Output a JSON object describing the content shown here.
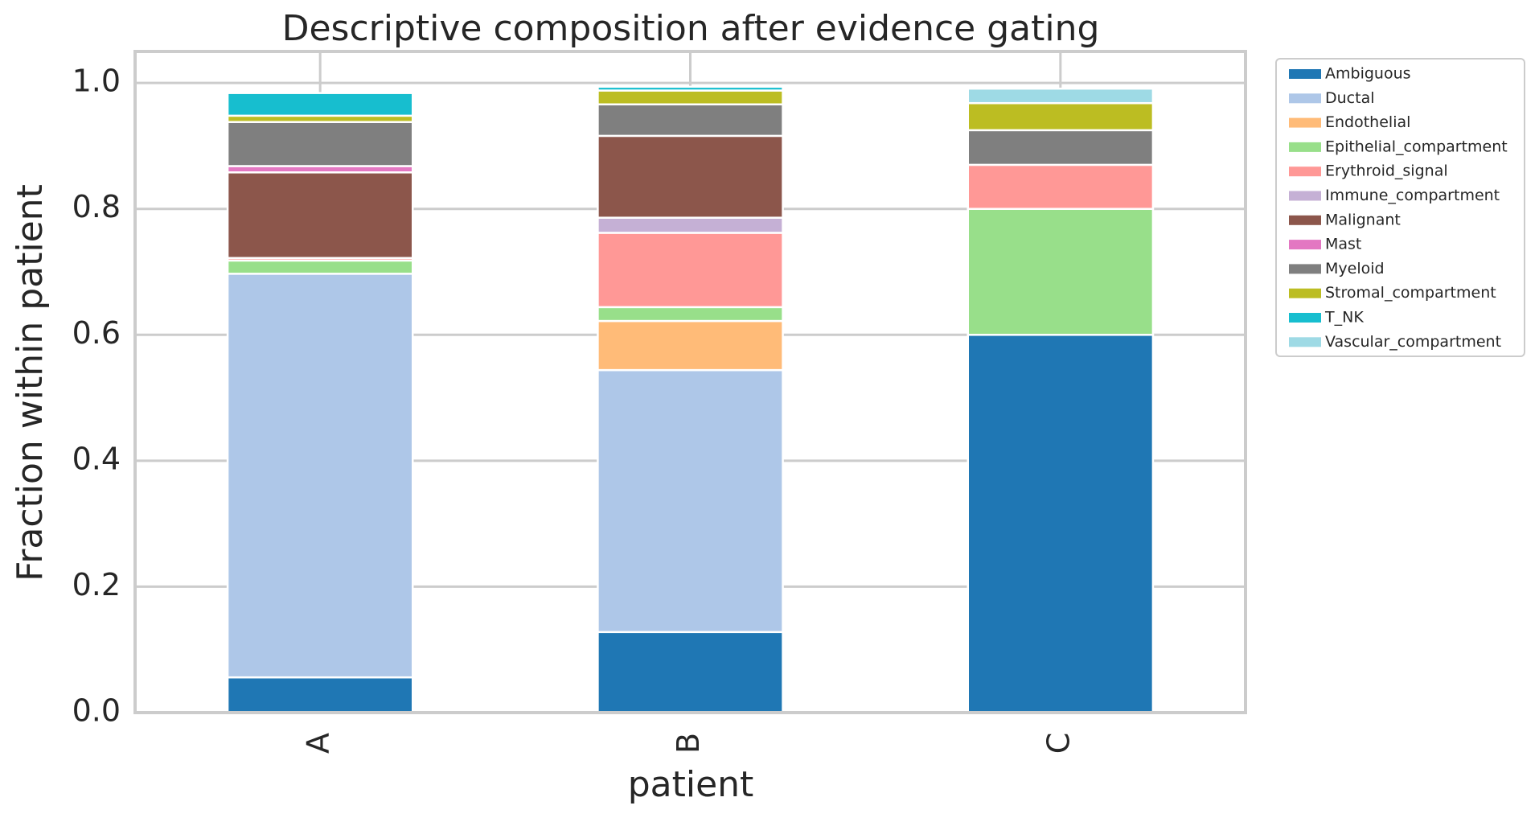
{
  "chart_data": {
    "type": "bar",
    "stacked": true,
    "title": "Descriptive composition after evidence gating",
    "xlabel": "patient",
    "ylabel": "Fraction within patient",
    "ylim": [
      0,
      1.05
    ],
    "yticks": [
      "0.0",
      "0.2",
      "0.4",
      "0.6",
      "0.8",
      "1.0"
    ],
    "ytick_values": [
      0,
      0.2,
      0.4,
      0.6,
      0.8,
      1.0
    ],
    "categories": [
      "A",
      "B",
      "C"
    ],
    "grid": true,
    "legend_position": "outside upper right",
    "series": [
      {
        "name": "Ambiguous",
        "color": "#1f77b4",
        "values": [
          0.056,
          0.128,
          0.6
        ]
      },
      {
        "name": "Ductal",
        "color": "#aec7e8",
        "values": [
          0.641,
          0.416,
          0.0
        ]
      },
      {
        "name": "Endothelial",
        "color": "#ffbb78",
        "values": [
          0.0,
          0.078,
          0.0
        ]
      },
      {
        "name": "Epithelial_compartment",
        "color": "#98df8a",
        "values": [
          0.021,
          0.022,
          0.2
        ]
      },
      {
        "name": "Erythroid_signal",
        "color": "#ff9896",
        "values": [
          0.004,
          0.118,
          0.07
        ]
      },
      {
        "name": "Immune_compartment",
        "color": "#c5b0d5",
        "values": [
          0.0,
          0.024,
          0.0
        ]
      },
      {
        "name": "Malignant",
        "color": "#8c564b",
        "values": [
          0.136,
          0.13,
          0.0
        ]
      },
      {
        "name": "Mast",
        "color": "#e377c2",
        "values": [
          0.01,
          0.0,
          0.0
        ]
      },
      {
        "name": "Myeloid",
        "color": "#7f7f7f",
        "values": [
          0.07,
          0.05,
          0.055
        ]
      },
      {
        "name": "Stromal_compartment",
        "color": "#bcbd22",
        "values": [
          0.01,
          0.022,
          0.043
        ]
      },
      {
        "name": "T_NK",
        "color": "#17becf",
        "values": [
          0.036,
          0.006,
          0.0
        ]
      },
      {
        "name": "Vascular_compartment",
        "color": "#9edae5",
        "values": [
          0.0,
          0.0,
          0.023
        ]
      }
    ]
  }
}
